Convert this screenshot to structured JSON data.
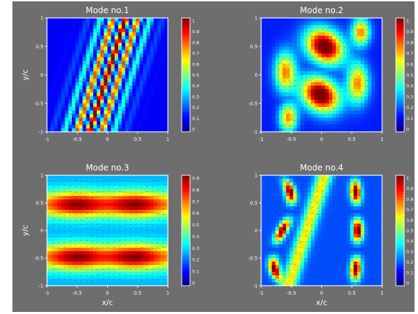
{
  "figure": {
    "background": "#6e6e6e"
  },
  "chart_data": [
    {
      "type": "heatmap",
      "title": "Mode no.1",
      "xlabel": "",
      "ylabel": "y/c",
      "xlim": [
        -1,
        1
      ],
      "ylim": [
        -1,
        1
      ],
      "x_ticks": [
        "-1",
        "-0.5",
        "0",
        "0.5",
        "1"
      ],
      "y_ticks": [
        "1",
        "0.5",
        "0",
        "-0.5",
        "-1"
      ],
      "colorbar_ticks": [
        "1",
        "0.9",
        "0.8",
        "0.7",
        "0.6",
        "0.5",
        "0.4",
        "0.3",
        "0.2",
        "0.1",
        "0"
      ],
      "clim": [
        0,
        1
      ],
      "pattern": "oblique bands",
      "vector_overlay": true
    },
    {
      "type": "heatmap",
      "title": "Mode no.2",
      "xlabel": "",
      "ylabel": "",
      "xlim": [
        -1,
        1
      ],
      "ylim": [
        -1,
        1
      ],
      "x_ticks": [
        "-1",
        "-0.5",
        "0",
        "0.5",
        "1"
      ],
      "y_ticks": [
        "1",
        "0.5",
        "0",
        "-0.5",
        "-1"
      ],
      "colorbar_ticks": [
        "1",
        "0.9",
        "0.8",
        "0.7",
        "0.6",
        "0.5",
        "0.4",
        "0.3",
        "0.2",
        "0.1",
        "0"
      ],
      "clim": [
        0,
        1
      ],
      "pattern": "diagonal lobes",
      "vector_overlay": true
    },
    {
      "type": "heatmap",
      "title": "Mode no.3",
      "xlabel": "x/c",
      "ylabel": "y/c",
      "xlim": [
        -1,
        1
      ],
      "ylim": [
        -1,
        1
      ],
      "x_ticks": [
        "-1",
        "-0.5",
        "0",
        "0.5",
        "1"
      ],
      "y_ticks": [
        "1",
        "0.5",
        "0",
        "-0.5",
        "-1"
      ],
      "colorbar_ticks": [
        "0.9",
        "0.8",
        "0.7",
        "0.6",
        "0.5",
        "0.4",
        "0.3",
        "0.2",
        "0.1",
        "0"
      ],
      "clim": [
        0,
        1
      ],
      "pattern": "horizontal cells",
      "vector_overlay": true
    },
    {
      "type": "heatmap",
      "title": "Mode no.4",
      "xlabel": "x/c",
      "ylabel": "",
      "xlim": [
        -1,
        1
      ],
      "ylim": [
        -1,
        1
      ],
      "x_ticks": [
        "-1",
        "-0.5",
        "0",
        "0.5",
        "1"
      ],
      "y_ticks": [
        "1",
        "0.5",
        "0",
        "-0.5",
        "-1"
      ],
      "colorbar_ticks": [
        "1",
        "0.9",
        "0.8",
        "0.7",
        "0.6",
        "0.5",
        "0.4",
        "0.3",
        "0.2",
        "0.1",
        "0"
      ],
      "clim": [
        0,
        1
      ],
      "pattern": "chevron",
      "vector_overlay": true
    }
  ]
}
